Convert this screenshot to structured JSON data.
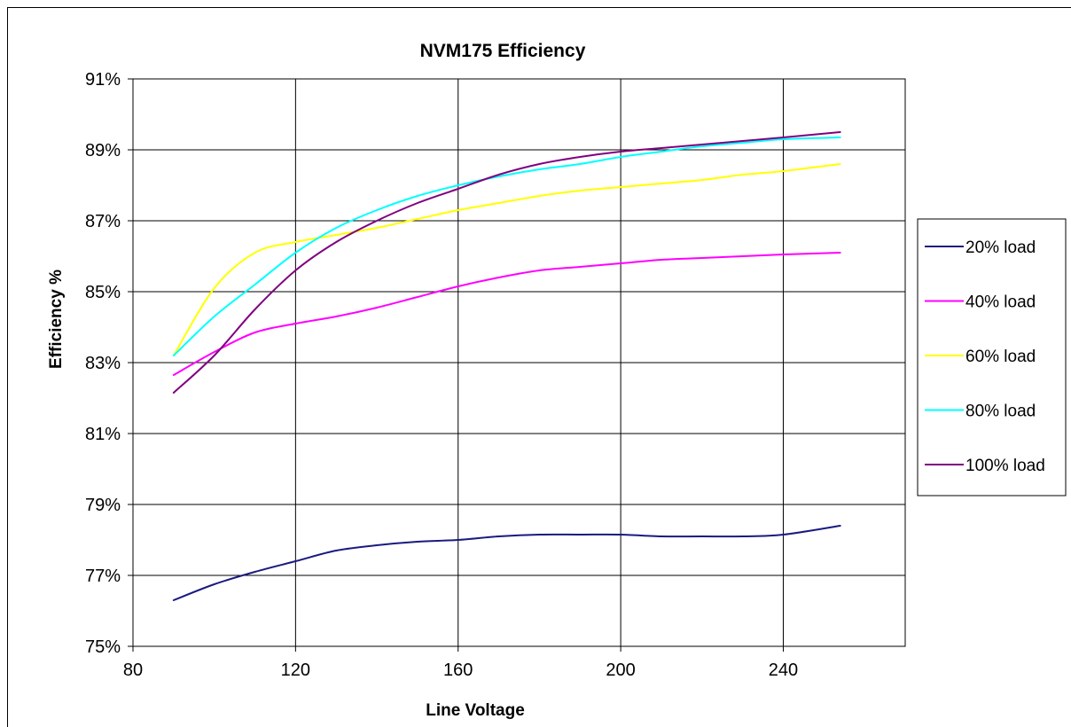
{
  "chart_data": {
    "type": "line",
    "title": "NVM175 Efficiency",
    "xlabel": "Line Voltage",
    "ylabel": "Efficiency %",
    "xlim": [
      80,
      270
    ],
    "ylim": [
      75,
      91
    ],
    "x_ticks": [
      "80",
      "120",
      "160",
      "200",
      "240"
    ],
    "y_ticks": [
      "75%",
      "77%",
      "79%",
      "81%",
      "83%",
      "85%",
      "87%",
      "89%",
      "91%"
    ],
    "grid": true,
    "legend_position": "right",
    "x": [
      90,
      100,
      110,
      120,
      130,
      140,
      150,
      160,
      170,
      180,
      190,
      200,
      210,
      220,
      230,
      240,
      254
    ],
    "series": [
      {
        "name": "20% load",
        "color": "#1a1a80",
        "values": [
          76.3,
          76.75,
          77.1,
          77.4,
          77.7,
          77.85,
          77.95,
          78.0,
          78.1,
          78.15,
          78.15,
          78.15,
          78.1,
          78.1,
          78.1,
          78.15,
          78.4
        ]
      },
      {
        "name": "40% load",
        "color": "#ff00ff",
        "values": [
          82.65,
          83.3,
          83.85,
          84.1,
          84.3,
          84.55,
          84.85,
          85.15,
          85.4,
          85.6,
          85.7,
          85.8,
          85.9,
          85.95,
          86.0,
          86.05,
          86.1
        ]
      },
      {
        "name": "60% load",
        "color": "#ffff00",
        "values": [
          83.2,
          85.1,
          86.1,
          86.4,
          86.6,
          86.8,
          87.05,
          87.3,
          87.5,
          87.7,
          87.85,
          87.95,
          88.05,
          88.15,
          88.3,
          88.4,
          88.6
        ]
      },
      {
        "name": "80% load",
        "color": "#00ffff",
        "values": [
          83.2,
          84.3,
          85.2,
          86.1,
          86.8,
          87.3,
          87.7,
          88.0,
          88.25,
          88.45,
          88.6,
          88.8,
          88.95,
          89.1,
          89.2,
          89.3,
          89.35
        ]
      },
      {
        "name": "100% load",
        "color": "#800080",
        "values": [
          82.15,
          83.2,
          84.5,
          85.6,
          86.4,
          87.0,
          87.5,
          87.9,
          88.3,
          88.6,
          88.8,
          88.95,
          89.05,
          89.15,
          89.25,
          89.35,
          89.5
        ]
      }
    ]
  }
}
